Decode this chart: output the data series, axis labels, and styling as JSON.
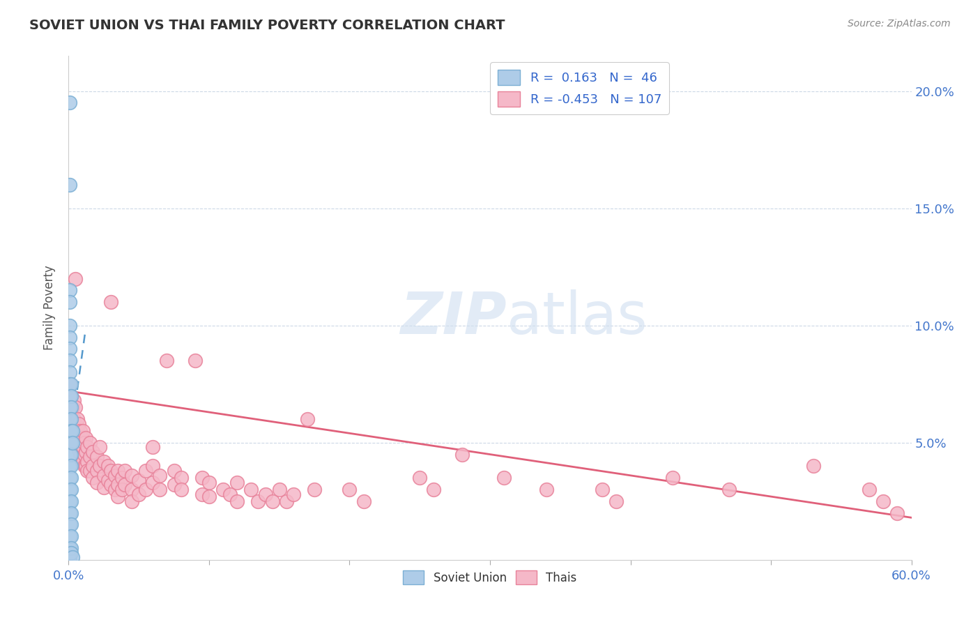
{
  "title": "SOVIET UNION VS THAI FAMILY POVERTY CORRELATION CHART",
  "source": "Source: ZipAtlas.com",
  "ylabel": "Family Poverty",
  "xmin": 0.0,
  "xmax": 0.6,
  "ymin": 0.0,
  "ymax": 0.215,
  "yticks": [
    0.05,
    0.1,
    0.15,
    0.2
  ],
  "ytick_labels": [
    "5.0%",
    "10.0%",
    "15.0%",
    "20.0%"
  ],
  "soviet_color": "#7bafd4",
  "soviet_face": "#aecce8",
  "thai_color": "#e8829a",
  "thai_face": "#f5b8c8",
  "trend_soviet_color": "#5599cc",
  "trend_thai_color": "#e0607a",
  "soviet_points": [
    [
      0.001,
      0.195
    ],
    [
      0.001,
      0.16
    ],
    [
      0.001,
      0.115
    ],
    [
      0.001,
      0.11
    ],
    [
      0.001,
      0.1
    ],
    [
      0.001,
      0.095
    ],
    [
      0.001,
      0.09
    ],
    [
      0.001,
      0.085
    ],
    [
      0.001,
      0.08
    ],
    [
      0.001,
      0.075
    ],
    [
      0.001,
      0.07
    ],
    [
      0.001,
      0.065
    ],
    [
      0.001,
      0.06
    ],
    [
      0.001,
      0.055
    ],
    [
      0.001,
      0.05
    ],
    [
      0.001,
      0.045
    ],
    [
      0.001,
      0.04
    ],
    [
      0.001,
      0.035
    ],
    [
      0.001,
      0.03
    ],
    [
      0.001,
      0.025
    ],
    [
      0.001,
      0.02
    ],
    [
      0.001,
      0.015
    ],
    [
      0.001,
      0.01
    ],
    [
      0.001,
      0.005
    ],
    [
      0.001,
      0.003
    ],
    [
      0.001,
      0.001
    ],
    [
      0.001,
      0.001
    ],
    [
      0.002,
      0.075
    ],
    [
      0.002,
      0.07
    ],
    [
      0.002,
      0.065
    ],
    [
      0.002,
      0.06
    ],
    [
      0.002,
      0.055
    ],
    [
      0.002,
      0.05
    ],
    [
      0.002,
      0.045
    ],
    [
      0.002,
      0.04
    ],
    [
      0.002,
      0.035
    ],
    [
      0.002,
      0.03
    ],
    [
      0.002,
      0.025
    ],
    [
      0.002,
      0.02
    ],
    [
      0.002,
      0.015
    ],
    [
      0.002,
      0.01
    ],
    [
      0.002,
      0.005
    ],
    [
      0.002,
      0.003
    ],
    [
      0.003,
      0.055
    ],
    [
      0.003,
      0.05
    ],
    [
      0.003,
      0.001
    ]
  ],
  "thai_points": [
    [
      0.001,
      0.075
    ],
    [
      0.001,
      0.065
    ],
    [
      0.001,
      0.055
    ],
    [
      0.002,
      0.07
    ],
    [
      0.002,
      0.06
    ],
    [
      0.002,
      0.055
    ],
    [
      0.003,
      0.065
    ],
    [
      0.003,
      0.058
    ],
    [
      0.003,
      0.05
    ],
    [
      0.004,
      0.068
    ],
    [
      0.004,
      0.06
    ],
    [
      0.004,
      0.055
    ],
    [
      0.005,
      0.12
    ],
    [
      0.005,
      0.065
    ],
    [
      0.005,
      0.058
    ],
    [
      0.006,
      0.06
    ],
    [
      0.006,
      0.055
    ],
    [
      0.006,
      0.05
    ],
    [
      0.007,
      0.058
    ],
    [
      0.007,
      0.052
    ],
    [
      0.007,
      0.047
    ],
    [
      0.008,
      0.055
    ],
    [
      0.008,
      0.05
    ],
    [
      0.008,
      0.045
    ],
    [
      0.009,
      0.052
    ],
    [
      0.009,
      0.048
    ],
    [
      0.009,
      0.042
    ],
    [
      0.01,
      0.055
    ],
    [
      0.01,
      0.048
    ],
    [
      0.01,
      0.042
    ],
    [
      0.011,
      0.05
    ],
    [
      0.011,
      0.045
    ],
    [
      0.011,
      0.04
    ],
    [
      0.012,
      0.052
    ],
    [
      0.012,
      0.046
    ],
    [
      0.012,
      0.04
    ],
    [
      0.013,
      0.048
    ],
    [
      0.013,
      0.042
    ],
    [
      0.013,
      0.038
    ],
    [
      0.015,
      0.05
    ],
    [
      0.015,
      0.044
    ],
    [
      0.015,
      0.038
    ],
    [
      0.017,
      0.046
    ],
    [
      0.017,
      0.04
    ],
    [
      0.017,
      0.035
    ],
    [
      0.02,
      0.044
    ],
    [
      0.02,
      0.038
    ],
    [
      0.02,
      0.033
    ],
    [
      0.022,
      0.048
    ],
    [
      0.022,
      0.04
    ],
    [
      0.025,
      0.042
    ],
    [
      0.025,
      0.036
    ],
    [
      0.025,
      0.031
    ],
    [
      0.028,
      0.04
    ],
    [
      0.028,
      0.034
    ],
    [
      0.03,
      0.11
    ],
    [
      0.03,
      0.038
    ],
    [
      0.03,
      0.032
    ],
    [
      0.033,
      0.036
    ],
    [
      0.033,
      0.03
    ],
    [
      0.035,
      0.038
    ],
    [
      0.035,
      0.032
    ],
    [
      0.035,
      0.027
    ],
    [
      0.038,
      0.035
    ],
    [
      0.038,
      0.03
    ],
    [
      0.04,
      0.038
    ],
    [
      0.04,
      0.032
    ],
    [
      0.045,
      0.036
    ],
    [
      0.045,
      0.03
    ],
    [
      0.045,
      0.025
    ],
    [
      0.05,
      0.034
    ],
    [
      0.05,
      0.028
    ],
    [
      0.055,
      0.038
    ],
    [
      0.055,
      0.03
    ],
    [
      0.06,
      0.048
    ],
    [
      0.06,
      0.04
    ],
    [
      0.06,
      0.033
    ],
    [
      0.065,
      0.036
    ],
    [
      0.065,
      0.03
    ],
    [
      0.07,
      0.085
    ],
    [
      0.075,
      0.038
    ],
    [
      0.075,
      0.032
    ],
    [
      0.08,
      0.035
    ],
    [
      0.08,
      0.03
    ],
    [
      0.09,
      0.085
    ],
    [
      0.095,
      0.035
    ],
    [
      0.095,
      0.028
    ],
    [
      0.1,
      0.033
    ],
    [
      0.1,
      0.027
    ],
    [
      0.11,
      0.03
    ],
    [
      0.115,
      0.028
    ],
    [
      0.12,
      0.033
    ],
    [
      0.12,
      0.025
    ],
    [
      0.13,
      0.03
    ],
    [
      0.135,
      0.025
    ],
    [
      0.14,
      0.028
    ],
    [
      0.145,
      0.025
    ],
    [
      0.15,
      0.03
    ],
    [
      0.155,
      0.025
    ],
    [
      0.16,
      0.028
    ],
    [
      0.17,
      0.06
    ],
    [
      0.175,
      0.03
    ],
    [
      0.2,
      0.03
    ],
    [
      0.21,
      0.025
    ],
    [
      0.25,
      0.035
    ],
    [
      0.26,
      0.03
    ],
    [
      0.28,
      0.045
    ],
    [
      0.31,
      0.035
    ],
    [
      0.34,
      0.03
    ],
    [
      0.38,
      0.03
    ],
    [
      0.39,
      0.025
    ],
    [
      0.43,
      0.035
    ],
    [
      0.47,
      0.03
    ],
    [
      0.53,
      0.04
    ],
    [
      0.57,
      0.03
    ],
    [
      0.58,
      0.025
    ],
    [
      0.59,
      0.02
    ]
  ],
  "soviet_trend_x": [
    0.0,
    0.012
  ],
  "thai_trend_x": [
    0.0,
    0.6
  ],
  "soviet_trend_y_start": 0.046,
  "soviet_trend_y_end": 0.098,
  "thai_trend_y_start": 0.072,
  "thai_trend_y_end": 0.018
}
